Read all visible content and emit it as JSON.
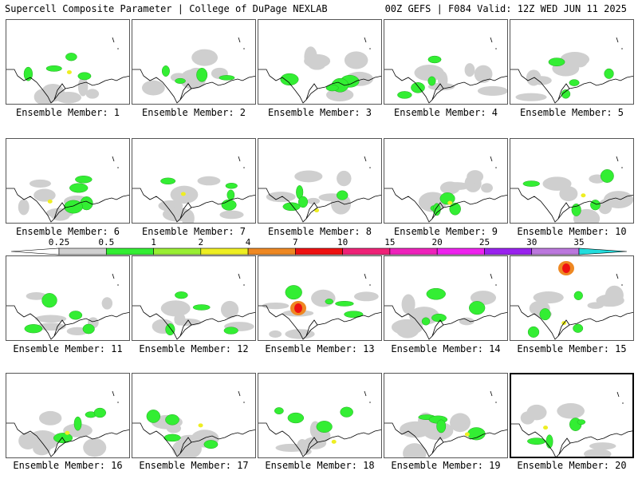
{
  "header": {
    "left": "Supercell Composite Parameter | College of DuPage NEXLAB",
    "right": "00Z GEFS | F084 Valid: 12Z WED JUN 11 2025"
  },
  "colorbar": {
    "ticks": [
      "0.25",
      "0.5",
      "1",
      "2",
      "4",
      "7",
      "10",
      "15",
      "20",
      "25",
      "30",
      "35"
    ],
    "colors": [
      "#d0d0d0",
      "#33ee33",
      "#99ee33",
      "#eeee22",
      "#ee8822",
      "#ee1111",
      "#ee2277",
      "#ee22bb",
      "#ee22ee",
      "#9922ee",
      "#bb77dd",
      "#22dddd"
    ]
  },
  "panels": [
    {
      "label": "Ensemble Member: 1",
      "selected": false
    },
    {
      "label": "Ensemble Member: 2",
      "selected": false
    },
    {
      "label": "Ensemble Member: 3",
      "selected": false
    },
    {
      "label": "Ensemble Member: 4",
      "selected": false
    },
    {
      "label": "Ensemble Member: 5",
      "selected": false
    },
    {
      "label": "Ensemble Member: 6",
      "selected": false
    },
    {
      "label": "Ensemble Member: 7",
      "selected": false
    },
    {
      "label": "Ensemble Member: 8",
      "selected": false
    },
    {
      "label": "Ensemble Member: 9",
      "selected": false
    },
    {
      "label": "Ensemble Member: 10",
      "selected": false
    },
    {
      "label": "Ensemble Member: 11",
      "selected": false
    },
    {
      "label": "Ensemble Member: 12",
      "selected": false
    },
    {
      "label": "Ensemble Member: 13",
      "selected": false
    },
    {
      "label": "Ensemble Member: 14",
      "selected": false
    },
    {
      "label": "Ensemble Member: 15",
      "selected": false
    },
    {
      "label": "Ensemble Member: 16",
      "selected": false
    },
    {
      "label": "Ensemble Member: 17",
      "selected": false
    },
    {
      "label": "Ensemble Member: 18",
      "selected": false
    },
    {
      "label": "Ensemble Member: 19",
      "selected": false
    },
    {
      "label": "Ensemble Member: 20",
      "selected": true
    }
  ]
}
